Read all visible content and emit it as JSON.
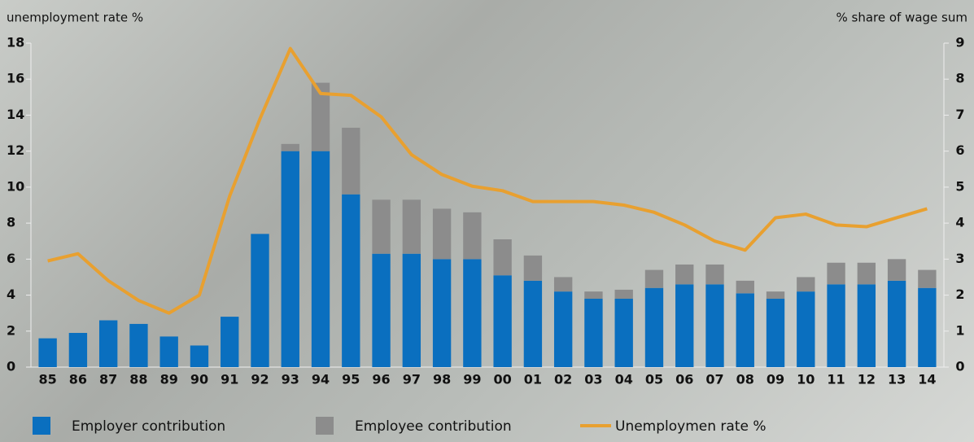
{
  "chart_data": {
    "type": "bar-line",
    "y_label": "unemployment rate %",
    "y2_label": "% share of wage sum",
    "categories": [
      "85",
      "86",
      "87",
      "88",
      "89",
      "90",
      "91",
      "92",
      "93",
      "94",
      "95",
      "96",
      "97",
      "98",
      "99",
      "00",
      "01",
      "02",
      "03",
      "04",
      "05",
      "06",
      "07",
      "08",
      "09",
      "10",
      "11",
      "12",
      "13",
      "14"
    ],
    "stacked": true,
    "series": [
      {
        "name": "Employer contribution",
        "type": "bar",
        "axis": "y2",
        "color": "#0a6fbf",
        "values": [
          0.8,
          0.95,
          1.3,
          1.2,
          0.85,
          0.6,
          1.4,
          3.7,
          6.0,
          6.0,
          4.8,
          3.15,
          3.15,
          3.0,
          3.0,
          2.55,
          2.4,
          2.1,
          1.9,
          1.9,
          2.2,
          2.3,
          2.3,
          2.05,
          1.9,
          2.1,
          2.3,
          2.3,
          2.4,
          2.2
        ]
      },
      {
        "name": "Employee contribution",
        "type": "bar",
        "axis": "y2",
        "color": "#8c8c8c",
        "values": [
          0,
          0,
          0,
          0,
          0,
          0,
          0,
          0,
          0.2,
          1.9,
          1.85,
          1.5,
          1.5,
          1.4,
          1.3,
          1.0,
          0.7,
          0.4,
          0.2,
          0.25,
          0.5,
          0.55,
          0.55,
          0.35,
          0.2,
          0.4,
          0.6,
          0.6,
          0.6,
          0.5
        ]
      },
      {
        "name": "Unemploymen rate %",
        "type": "line",
        "axis": "y",
        "color": "#e8a030",
        "values": [
          5.9,
          6.3,
          4.8,
          3.7,
          3.0,
          4.0,
          9.5,
          13.8,
          17.7,
          15.2,
          15.1,
          13.9,
          11.8,
          10.7,
          10.05,
          9.8,
          9.2,
          9.2,
          9.2,
          9.0,
          8.6,
          7.9,
          7.0,
          6.5,
          8.3,
          8.5,
          7.9,
          7.8,
          8.3,
          8.8
        ]
      }
    ],
    "ylim": [
      0,
      18
    ],
    "yticks": [
      0,
      2,
      4,
      6,
      8,
      10,
      12,
      14,
      16,
      18
    ],
    "y2lim": [
      0,
      9
    ],
    "y2ticks": [
      0,
      1,
      2,
      3,
      4,
      5,
      6,
      7,
      8,
      9
    ]
  }
}
